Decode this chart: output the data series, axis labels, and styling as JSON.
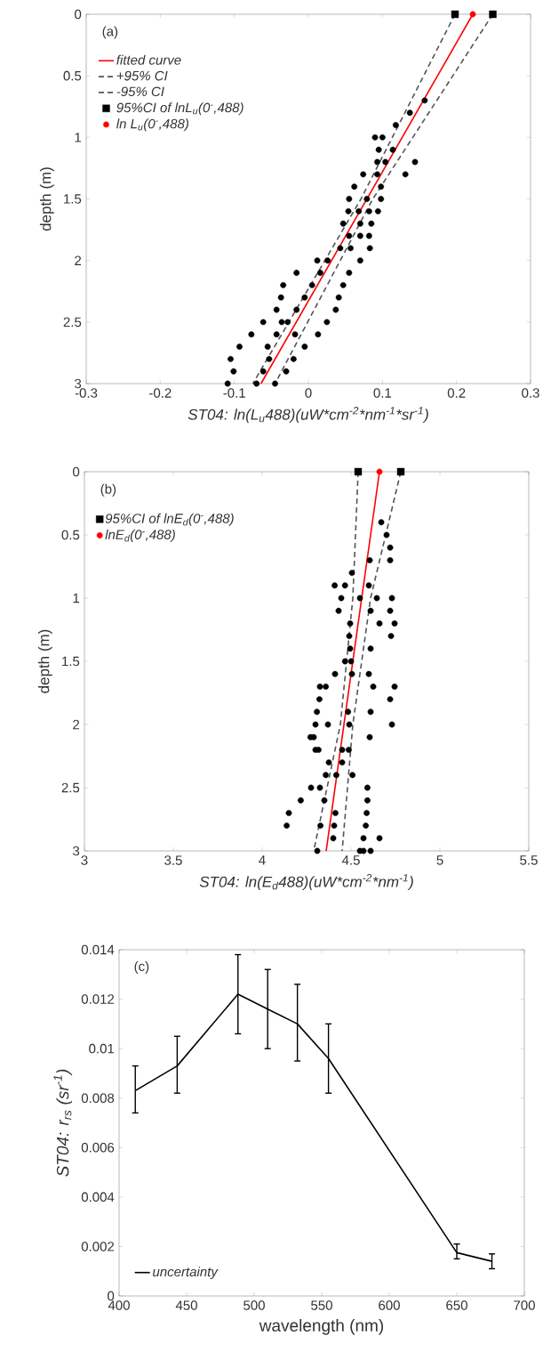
{
  "chart_data": [
    {
      "type": "scatter",
      "xlabel": "ST04: ln(L$_{u}$488)(uW*cm$^{-2}$*nm$^{-1}$*sr$^{-1}$)",
      "ylabel": "depth (m)",
      "annotations": [
        "(a)"
      ],
      "xlim": [
        -0.3,
        0.3
      ],
      "xticks": [
        -0.3,
        -0.2,
        -0.1,
        0,
        0.1,
        0.2,
        0.3
      ],
      "ylim": [
        3,
        0
      ],
      "yticks": [
        0,
        0.5,
        1,
        1.5,
        2,
        2.5,
        3
      ],
      "legend": "top left",
      "grid": false,
      "series": [
        {
          "type": "scatter",
          "color": "#000000",
          "marker": "circle",
          "x": [
            0.157,
            0.137,
            0.118,
            0.09,
            0.1,
            0.095,
            0.114,
            0.093,
            0.104,
            0.144,
            0.074,
            0.093,
            0.131,
            0.062,
            0.098,
            0.055,
            0.079,
            0.098,
            0.054,
            0.068,
            0.082,
            0.094,
            0.047,
            0.07,
            0.085,
            0.055,
            0.07,
            0.082,
            0.043,
            0.057,
            0.083,
            0.012,
            0.026,
            0.07,
            -0.016,
            0.016,
            0.055,
            -0.034,
            0.005,
            0.047,
            -0.037,
            -0.005,
            0.041,
            -0.043,
            -0.016,
            0.037,
            -0.061,
            -0.036,
            -0.028,
            0.025,
            -0.077,
            -0.043,
            -0.018,
            0.013,
            -0.093,
            -0.055,
            -0.005,
            -0.105,
            -0.053,
            -0.02,
            -0.101,
            -0.061,
            -0.03,
            -0.109,
            -0.07,
            -0.045
          ],
          "values": [
            0.7,
            0.8,
            0.9,
            1.0,
            1.0,
            1.1,
            1.1,
            1.2,
            1.2,
            1.2,
            1.3,
            1.3,
            1.3,
            1.4,
            1.4,
            1.5,
            1.5,
            1.5,
            1.6,
            1.6,
            1.6,
            1.6,
            1.7,
            1.7,
            1.7,
            1.8,
            1.8,
            1.8,
            1.9,
            1.9,
            1.9,
            2.0,
            2.0,
            2.0,
            2.1,
            2.1,
            2.1,
            2.2,
            2.2,
            2.2,
            2.3,
            2.3,
            2.3,
            2.4,
            2.4,
            2.4,
            2.5,
            2.5,
            2.5,
            2.5,
            2.6,
            2.6,
            2.6,
            2.6,
            2.7,
            2.7,
            2.7,
            2.8,
            2.8,
            2.8,
            2.9,
            2.9,
            2.9,
            3.0,
            3.0,
            3.0
          ]
        },
        {
          "name": "fitted curve",
          "type": "line",
          "color": "#ff0000",
          "line_style": "solid",
          "marker": "none",
          "x": [
            0.222,
            -0.064
          ],
          "values": [
            0,
            3
          ]
        },
        {
          "name": "+95% CI",
          "type": "line",
          "color": "#555555",
          "line_style": "dashed",
          "marker": "none",
          "x": [
            0.249,
            0.087,
            -0.045
          ],
          "values": [
            0,
            1.5,
            3
          ]
        },
        {
          "name": "-95% CI",
          "type": "line",
          "color": "#555555",
          "line_style": "dashed",
          "marker": "none",
          "x": [
            0.198,
            0.071,
            -0.075
          ],
          "values": [
            0,
            1.5,
            3
          ]
        },
        {
          "name": "95%CI of lnL$_{u}$(0$^{-}$,488)",
          "type": "scatter",
          "color": "#000000",
          "marker": "square",
          "x": [
            0.198,
            0.249
          ],
          "values": [
            0,
            0
          ]
        },
        {
          "name": "ln L$_{u}$(0$^{-}$,488)",
          "type": "scatter",
          "color": "#ff0000",
          "marker": "circle",
          "x": [
            0.222
          ],
          "values": [
            0
          ]
        }
      ]
    },
    {
      "type": "scatter",
      "xlabel": "ST04: ln(E$_{d}$488)(uW*cm$^{-2}$*nm$^{-1}$)",
      "ylabel": "depth (m)",
      "annotations": [
        "(b)"
      ],
      "xlim": [
        3,
        5.5
      ],
      "xticks": [
        3,
        3.5,
        4,
        4.5,
        5,
        5.5
      ],
      "ylim": [
        3,
        0
      ],
      "yticks": [
        0,
        0.5,
        1,
        1.5,
        2,
        2.5,
        3
      ],
      "legend": "top left",
      "grid": false,
      "series": [
        {
          "type": "scatter",
          "color": "#000000",
          "marker": "circle",
          "x": [
            4.67,
            4.7,
            4.72,
            4.605,
            4.72,
            4.505,
            4.408,
            4.466,
            4.6,
            4.445,
            4.55,
            4.645,
            4.73,
            4.43,
            4.61,
            4.72,
            4.495,
            4.66,
            4.745,
            4.49,
            4.725,
            4.495,
            4.61,
            4.466,
            4.5,
            4.41,
            4.505,
            4.6,
            4.325,
            4.358,
            4.625,
            4.745,
            4.322,
            4.72,
            4.308,
            4.483,
            4.61,
            4.3,
            4.37,
            4.49,
            4.73,
            4.272,
            4.29,
            4.605,
            4.3,
            4.317,
            4.45,
            4.487,
            4.375,
            4.45,
            4.358,
            4.417,
            4.508,
            4.275,
            4.325,
            4.592,
            4.217,
            4.35,
            4.592,
            4.15,
            4.412,
            4.588,
            4.138,
            4.328,
            4.405,
            4.583,
            4.4,
            4.57,
            4.66,
            4.31,
            4.55,
            4.57,
            4.61
          ],
          "values": [
            0.4,
            0.5,
            0.6,
            0.7,
            0.7,
            0.8,
            0.9,
            0.9,
            0.9,
            1.0,
            1.0,
            1.0,
            1.0,
            1.1,
            1.1,
            1.1,
            1.2,
            1.2,
            1.2,
            1.3,
            1.3,
            1.4,
            1.4,
            1.5,
            1.5,
            1.6,
            1.6,
            1.6,
            1.7,
            1.7,
            1.7,
            1.7,
            1.8,
            1.8,
            1.9,
            1.9,
            1.9,
            2.0,
            2.0,
            2.0,
            2.0,
            2.1,
            2.1,
            2.1,
            2.2,
            2.2,
            2.2,
            2.2,
            2.3,
            2.3,
            2.4,
            2.4,
            2.4,
            2.5,
            2.5,
            2.5,
            2.6,
            2.6,
            2.6,
            2.7,
            2.7,
            2.7,
            2.8,
            2.8,
            2.8,
            2.8,
            2.9,
            2.9,
            2.9,
            3.0,
            3.0,
            3.0,
            3.0
          ]
        },
        {
          "type": "line",
          "color": "#ff0000",
          "line_style": "solid",
          "marker": "none",
          "x": [
            4.66,
            4.36
          ],
          "values": [
            0,
            3
          ]
        },
        {
          "type": "line",
          "color": "#555555",
          "line_style": "dashed",
          "marker": "none",
          "x": [
            4.78,
            4.61,
            4.51,
            4.45
          ],
          "values": [
            0,
            1,
            2,
            3
          ]
        },
        {
          "type": "line",
          "color": "#555555",
          "line_style": "dashed",
          "marker": "none",
          "x": [
            4.54,
            4.51,
            4.44,
            4.29
          ],
          "values": [
            0,
            1,
            2,
            3
          ]
        },
        {
          "name": "95%CI of lnE$_{d}$(0$^{-}$,488)",
          "type": "scatter",
          "color": "#000000",
          "marker": "square",
          "x": [
            4.54,
            4.78
          ],
          "values": [
            0,
            0
          ]
        },
        {
          "name": "lnE$_{d}$(0$^{-}$,488)",
          "type": "scatter",
          "color": "#ff0000",
          "marker": "circle",
          "x": [
            4.66
          ],
          "values": [
            0
          ]
        }
      ]
    },
    {
      "type": "line",
      "xlabel": "wavelength (nm)",
      "ylabel": "ST04: r$_{rs}$ (sr$^{-1}$)",
      "annotations": [
        "(c)"
      ],
      "xlim": [
        400,
        700
      ],
      "xticks": [
        400,
        450,
        500,
        550,
        600,
        650,
        700
      ],
      "ylim": [
        0,
        0.014
      ],
      "yticks": [
        0,
        0.002,
        0.004,
        0.006,
        0.008,
        0.01,
        0.012,
        0.014
      ],
      "legend": "bottom left",
      "grid": false,
      "x": [
        412,
        443,
        488,
        510,
        532,
        555,
        650,
        676
      ],
      "series": [
        {
          "name": "uncertainty",
          "color": "#000000",
          "marker": "none",
          "line_style": "solid",
          "values": [
            0.0083,
            0.0093,
            0.0122,
            0.0116,
            0.011,
            0.0096,
            0.00175,
            0.0014
          ],
          "errors": [
            [
              0.0074,
              0.0093
            ],
            [
              0.0082,
              0.0105
            ],
            [
              0.0106,
              0.0138
            ],
            [
              0.01,
              0.0132
            ],
            [
              0.0095,
              0.0126
            ],
            [
              0.0082,
              0.011
            ],
            [
              0.0015,
              0.0021
            ],
            [
              0.0011,
              0.0017
            ]
          ]
        }
      ]
    }
  ]
}
